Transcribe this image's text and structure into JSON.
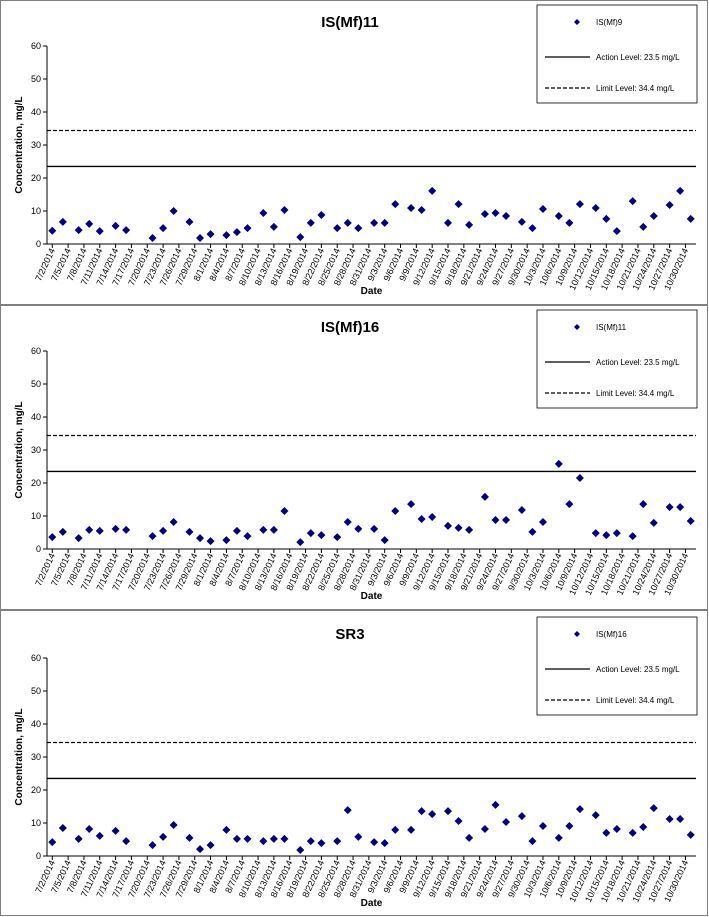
{
  "chart_data": [
    {
      "type": "scatter",
      "title": "IS(Mf)11",
      "xlabel": "Date",
      "ylabel": "Concentration, mg/L",
      "x": [
        "7/2/2014",
        "7/4/2014",
        "7/7/2014",
        "7/9/2014",
        "7/11/2014",
        "7/14/2014",
        "7/16/2014",
        "7/18/2014",
        "7/21/2014",
        "7/23/2014",
        "7/25/2014",
        "7/28/2014",
        "7/30/2014",
        "8/1/2014",
        "8/4/2014",
        "8/6/2014",
        "8/8/2014",
        "8/11/2014",
        "8/13/2014",
        "8/15/2014",
        "8/18/2014",
        "8/20/2014",
        "8/22/2014",
        "8/25/2014",
        "8/27/2014",
        "8/29/2014",
        "9/1/2014",
        "9/3/2014",
        "9/5/2014",
        "9/8/2014",
        "9/10/2014",
        "9/12/2014",
        "9/15/2014",
        "9/17/2014",
        "9/19/2014",
        "9/22/2014",
        "9/24/2014",
        "9/26/2014",
        "9/29/2014",
        "10/1/2014",
        "10/3/2014",
        "10/6/2014",
        "10/8/2014",
        "10/10/2014",
        "10/13/2014",
        "10/15/2014",
        "10/17/2014",
        "10/20/2014",
        "10/22/2014",
        "10/24/2014",
        "10/27/2014",
        "10/29/2014",
        "10/31/2014"
      ],
      "series": [
        {
          "name": "IS(Mf)9",
          "color": "#000080",
          "values": [
            4.0,
            6.7,
            4.2,
            6.1,
            3.9,
            5.5,
            4.2,
            null,
            1.8,
            4.8,
            10.0,
            6.7,
            1.8,
            3.0,
            2.7,
            3.6,
            4.8,
            9.4,
            5.2,
            10.3,
            2.1,
            6.4,
            8.8,
            4.8,
            6.4,
            4.8,
            6.4,
            6.4,
            12.1,
            10.9,
            10.3,
            16.1,
            6.4,
            12.1,
            5.8,
            9.1,
            9.4,
            8.5,
            6.7,
            4.8,
            10.6,
            8.5,
            6.4,
            12.1,
            10.9,
            7.6,
            3.9,
            13.0,
            5.2,
            8.5,
            11.8,
            16.1,
            7.6
          ]
        }
      ],
      "lines": [
        {
          "name": "Action Level: 23.5 mg/L",
          "value": 23.5,
          "style": "solid",
          "color": "#000000"
        },
        {
          "name": "Limit Level: 34.4 mg/L",
          "value": 34.4,
          "style": "dashed",
          "color": "#000000"
        }
      ],
      "xlim": [
        "7/1/2014",
        "11/1/2014"
      ],
      "xticks": [
        "7/2/2014",
        "7/5/2014",
        "7/8/2014",
        "7/11/2014",
        "7/14/2014",
        "7/17/2014",
        "7/20/2014",
        "7/23/2014",
        "7/26/2014",
        "7/29/2014",
        "8/1/2014",
        "8/4/2014",
        "8/7/2014",
        "8/10/2014",
        "8/13/2014",
        "8/16/2014",
        "8/19/2014",
        "8/22/2014",
        "8/25/2014",
        "8/28/2014",
        "8/31/2014",
        "9/3/2014",
        "9/6/2014",
        "9/9/2014",
        "9/12/2014",
        "9/15/2014",
        "9/18/2014",
        "9/21/2014",
        "9/24/2014",
        "9/27/2014",
        "9/30/2014",
        "10/3/2014",
        "10/6/2014",
        "10/9/2014",
        "10/12/2014",
        "10/15/2014",
        "10/18/2014",
        "10/21/2014",
        "10/24/2014",
        "10/27/2014",
        "10/30/2014"
      ],
      "ylim": [
        0,
        60
      ],
      "yticks": [
        0,
        10,
        20,
        30,
        40,
        50,
        60
      ],
      "grid": false,
      "legend": "upper right"
    },
    {
      "type": "scatter",
      "title": "IS(Mf)16",
      "xlabel": "Date",
      "ylabel": "Concentration, mg/L",
      "x": [
        "7/2/2014",
        "7/4/2014",
        "7/7/2014",
        "7/9/2014",
        "7/11/2014",
        "7/14/2014",
        "7/16/2014",
        "7/18/2014",
        "7/21/2014",
        "7/23/2014",
        "7/25/2014",
        "7/28/2014",
        "7/30/2014",
        "8/1/2014",
        "8/4/2014",
        "8/6/2014",
        "8/8/2014",
        "8/11/2014",
        "8/13/2014",
        "8/15/2014",
        "8/18/2014",
        "8/20/2014",
        "8/22/2014",
        "8/25/2014",
        "8/27/2014",
        "8/29/2014",
        "9/1/2014",
        "9/3/2014",
        "9/5/2014",
        "9/8/2014",
        "9/10/2014",
        "9/12/2014",
        "9/15/2014",
        "9/17/2014",
        "9/19/2014",
        "9/22/2014",
        "9/24/2014",
        "9/26/2014",
        "9/29/2014",
        "10/1/2014",
        "10/3/2014",
        "10/6/2014",
        "10/8/2014",
        "10/10/2014",
        "10/13/2014",
        "10/15/2014",
        "10/17/2014",
        "10/20/2014",
        "10/22/2014",
        "10/24/2014",
        "10/27/2014",
        "10/29/2014",
        "10/31/2014"
      ],
      "series": [
        {
          "name": "IS(Mf)11",
          "color": "#000080",
          "values": [
            3.6,
            5.2,
            3.3,
            5.8,
            5.5,
            6.1,
            5.8,
            null,
            3.9,
            5.5,
            8.2,
            5.2,
            3.3,
            2.4,
            2.7,
            5.5,
            3.9,
            5.8,
            5.8,
            11.5,
            2.1,
            4.8,
            4.2,
            3.6,
            8.2,
            6.1,
            6.1,
            2.7,
            11.5,
            13.6,
            9.1,
            9.7,
            7.0,
            6.4,
            5.8,
            15.8,
            8.8,
            8.8,
            11.8,
            5.2,
            8.2,
            25.8,
            13.6,
            21.5,
            4.8,
            4.2,
            4.8,
            3.9,
            13.6,
            7.9,
            12.7,
            12.7,
            8.5
          ]
        }
      ],
      "lines": [
        {
          "name": "Action Level: 23.5 mg/L",
          "value": 23.5,
          "style": "solid",
          "color": "#000000"
        },
        {
          "name": "Limit Level: 34.4 mg/L",
          "value": 34.4,
          "style": "dashed",
          "color": "#000000"
        }
      ],
      "xlim": [
        "7/1/2014",
        "11/1/2014"
      ],
      "xticks": [
        "7/2/2014",
        "7/5/2014",
        "7/8/2014",
        "7/11/2014",
        "7/14/2014",
        "7/17/2014",
        "7/20/2014",
        "7/23/2014",
        "7/26/2014",
        "7/29/2014",
        "8/1/2014",
        "8/4/2014",
        "8/7/2014",
        "8/10/2014",
        "8/13/2014",
        "8/16/2014",
        "8/19/2014",
        "8/22/2014",
        "8/25/2014",
        "8/28/2014",
        "8/31/2014",
        "9/3/2014",
        "9/6/2014",
        "9/9/2014",
        "9/12/2014",
        "9/15/2014",
        "9/18/2014",
        "9/21/2014",
        "9/24/2014",
        "9/27/2014",
        "9/30/2014",
        "10/3/2014",
        "10/6/2014",
        "10/9/2014",
        "10/12/2014",
        "10/15/2014",
        "10/18/2014",
        "10/21/2014",
        "10/24/2014",
        "10/27/2014",
        "10/30/2014"
      ],
      "ylim": [
        0,
        60
      ],
      "yticks": [
        0,
        10,
        20,
        30,
        40,
        50,
        60
      ],
      "grid": false,
      "legend": "upper right"
    },
    {
      "type": "scatter",
      "title": "SR3",
      "xlabel": "Date",
      "ylabel": "Concentration, mg/L",
      "x": [
        "7/2/2014",
        "7/4/2014",
        "7/7/2014",
        "7/9/2014",
        "7/11/2014",
        "7/14/2014",
        "7/16/2014",
        "7/18/2014",
        "7/21/2014",
        "7/23/2014",
        "7/25/2014",
        "7/28/2014",
        "7/30/2014",
        "8/1/2014",
        "8/4/2014",
        "8/6/2014",
        "8/8/2014",
        "8/11/2014",
        "8/13/2014",
        "8/15/2014",
        "8/18/2014",
        "8/20/2014",
        "8/22/2014",
        "8/25/2014",
        "8/27/2014",
        "8/29/2014",
        "9/1/2014",
        "9/3/2014",
        "9/5/2014",
        "9/8/2014",
        "9/10/2014",
        "9/12/2014",
        "9/15/2014",
        "9/17/2014",
        "9/19/2014",
        "9/22/2014",
        "9/24/2014",
        "9/26/2014",
        "9/29/2014",
        "10/1/2014",
        "10/3/2014",
        "10/6/2014",
        "10/8/2014",
        "10/10/2014",
        "10/13/2014",
        "10/15/2014",
        "10/17/2014",
        "10/20/2014",
        "10/22/2014",
        "10/24/2014",
        "10/27/2014",
        "10/29/2014",
        "10/31/2014"
      ],
      "series": [
        {
          "name": "IS(Mf)16",
          "color": "#000080",
          "values": [
            4.2,
            8.5,
            5.2,
            8.2,
            6.1,
            7.6,
            4.5,
            null,
            3.3,
            5.8,
            9.4,
            5.5,
            2.1,
            3.3,
            7.9,
            5.2,
            5.2,
            4.5,
            5.2,
            5.2,
            1.8,
            4.5,
            3.9,
            4.5,
            13.9,
            5.8,
            4.2,
            3.9,
            7.9,
            7.9,
            13.6,
            12.7,
            13.6,
            10.6,
            5.5,
            8.2,
            15.5,
            10.3,
            12.1,
            4.5,
            9.1,
            5.5,
            9.1,
            14.2,
            12.4,
            7.0,
            8.2,
            7.0,
            8.8,
            14.5,
            11.2,
            11.2,
            6.4
          ]
        }
      ],
      "lines": [
        {
          "name": "Action Level: 23.5 mg/L",
          "value": 23.5,
          "style": "solid",
          "color": "#000000"
        },
        {
          "name": "Limit Level: 34.4 mg/L",
          "value": 34.4,
          "style": "dashed",
          "color": "#000000"
        }
      ],
      "xlim": [
        "7/1/2014",
        "11/1/2014"
      ],
      "xticks": [
        "7/2/2014",
        "7/5/2014",
        "7/8/2014",
        "7/11/2014",
        "7/14/2014",
        "7/17/2014",
        "7/20/2014",
        "7/23/2014",
        "7/26/2014",
        "7/29/2014",
        "8/1/2014",
        "8/4/2014",
        "8/7/2014",
        "8/10/2014",
        "8/13/2014",
        "8/16/2014",
        "8/19/2014",
        "8/22/2014",
        "8/25/2014",
        "8/28/2014",
        "8/31/2014",
        "9/3/2014",
        "9/6/2014",
        "9/9/2014",
        "9/12/2014",
        "9/15/2014",
        "9/18/2014",
        "9/21/2014",
        "9/24/2014",
        "9/27/2014",
        "9/30/2014",
        "10/3/2014",
        "10/6/2014",
        "10/9/2014",
        "10/12/2014",
        "10/15/2014",
        "10/18/2014",
        "10/21/2014",
        "10/24/2014",
        "10/27/2014",
        "10/30/2014"
      ],
      "ylim": [
        0,
        60
      ],
      "yticks": [
        0,
        10,
        20,
        30,
        40,
        50,
        60
      ],
      "grid": false,
      "legend": "upper right"
    }
  ]
}
